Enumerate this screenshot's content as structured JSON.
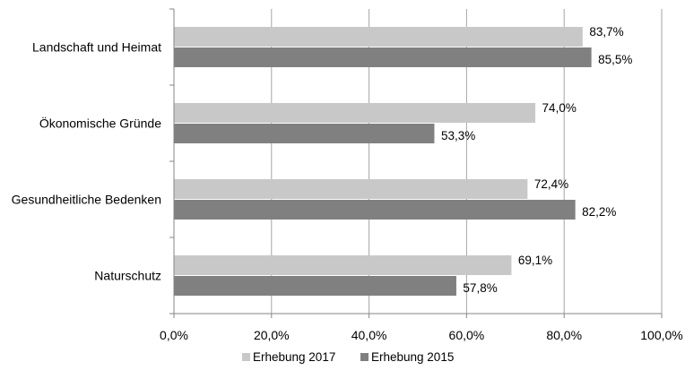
{
  "chart_data": {
    "type": "bar",
    "orientation": "horizontal",
    "categories": [
      "Landschaft und Heimat",
      "Ökonomische Gründe",
      "Gesundheitliche Bedenken",
      "Naturschutz"
    ],
    "series": [
      {
        "name": "Erhebung 2017",
        "values": [
          83.7,
          74.0,
          72.4,
          69.1
        ],
        "labels": [
          "83,7%",
          "74,0%",
          "72,4%",
          "69,1%"
        ],
        "color": "#c8c8c8"
      },
      {
        "name": "Erhebung 2015",
        "values": [
          85.5,
          53.3,
          82.2,
          57.8
        ],
        "labels": [
          "85,5%",
          "53,3%",
          "82,2%",
          "57,8%"
        ],
        "color": "#808080"
      }
    ],
    "xlim": [
      0,
      100
    ],
    "x_ticks": [
      0,
      20,
      40,
      60,
      80,
      100
    ],
    "x_tick_labels": [
      "0,0%",
      "20,0%",
      "40,0%",
      "60,0%",
      "80,0%",
      "100,0%"
    ],
    "grid": "vertical",
    "legend_position": "bottom"
  }
}
